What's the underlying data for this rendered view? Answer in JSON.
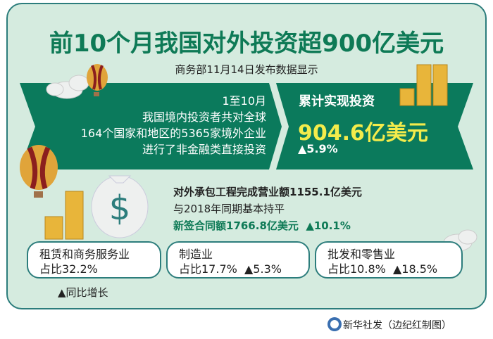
{
  "title": "前10个月我国对外投资超900亿美元",
  "subtitle": "商务部11月14日发布数据显示",
  "banner_left": {
    "lines": [
      "1至10月",
      "我国境内投资者共对全球",
      "164个国家和地区的5365家境外企业",
      "进行了非金融类直接投资"
    ]
  },
  "banner_right": {
    "label": "累计实现投资",
    "value": "904.6亿美元",
    "growth": "▲5.9%"
  },
  "contract": {
    "line1": "对外承包工程完成营业额1155.1亿美元",
    "line2": "与2018年同期基本持平",
    "line3": "新签合同额1766.8亿美元  ▲10.1%"
  },
  "sectors": [
    {
      "name": "租赁和商务服务业",
      "share": "占比32.2%"
    },
    {
      "name": "制造业",
      "share": "占比17.7%  ▲5.3%"
    },
    {
      "name": "批发和零售业",
      "share": "占比10.8%  ▲18.5%"
    }
  ],
  "legend_note": "▲同比增长",
  "credit": "新华社发（边纪红制图）",
  "colors": {
    "background": "#d5ebdf",
    "banner": "#0b7a5c",
    "title": "#0e7a56",
    "highlight": "#f4ec4b",
    "border": "#2c7d7c"
  }
}
